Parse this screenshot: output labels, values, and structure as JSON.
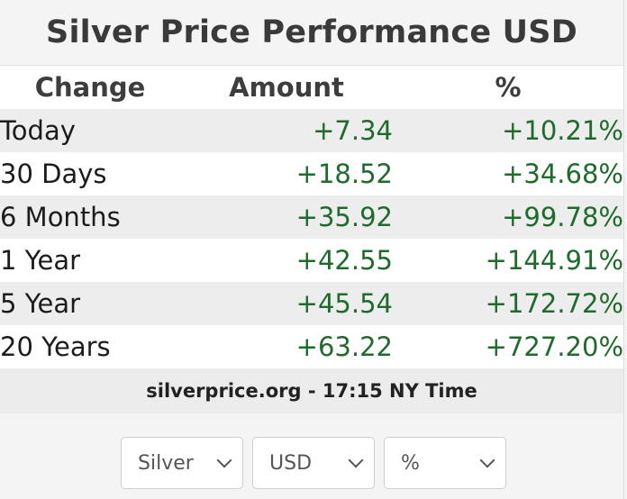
{
  "widget": {
    "title": "Silver Price Performance USD",
    "headers": {
      "change": "Change",
      "amount": "Amount",
      "percent": "%"
    },
    "rows": [
      {
        "period": "Today",
        "amount": "+7.34",
        "percent": "+10.21%"
      },
      {
        "period": "30 Days",
        "amount": "+18.52",
        "percent": "+34.68%"
      },
      {
        "period": "6 Months",
        "amount": "+35.92",
        "percent": "+99.78%"
      },
      {
        "period": "1 Year",
        "amount": "+42.55",
        "percent": "+144.91%"
      },
      {
        "period": "5 Year",
        "amount": "+45.54",
        "percent": "+172.72%"
      },
      {
        "period": "20 Years",
        "amount": "+63.22",
        "percent": "+727.20%"
      }
    ],
    "source": "silverprice.org - 17:15 NY Time"
  },
  "controls": {
    "metal_select": {
      "value": "Silver"
    },
    "currency_select": {
      "value": "USD"
    },
    "mode_select": {
      "value": "%"
    }
  },
  "colors": {
    "positive": "#1e6b2c",
    "row_alt": "#ededed",
    "background": "#f4f4f4"
  },
  "icons": {
    "select_arrow": "chevron-down-icon"
  }
}
